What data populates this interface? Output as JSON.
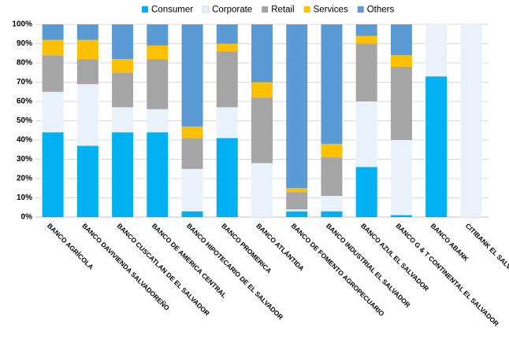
{
  "chart_data": {
    "type": "stacked-bar",
    "categories": [
      "BANCO AGRÍCOLA",
      "BANCO DAVIVIENDA SALVADOREÑO",
      "BANCO CUSCATLAN DE EL SALVADOR",
      "BANCO DE AMERICA CENTRAL",
      "BANCO HIPOTECARIO DE EL SALVADOR",
      "BANCO PROMERICA",
      "BANCO ATLÁNTIDA",
      "BANCO DE FOMENTO AGROPECUARIO",
      "BANCO INDUSTRIAL EL SALVADOR",
      "BANCO AZUL EL SALVADOR",
      "BANCO G & T CONTINENTAL EL SALVADOR",
      "BANCO ABANK",
      "CITIBANK EL SALVADOR"
    ],
    "series": [
      {
        "name": "Consumer",
        "color": "#00b0f0",
        "values": [
          44,
          37,
          44,
          44,
          3,
          41,
          0,
          3,
          3,
          26,
          1,
          73,
          0
        ]
      },
      {
        "name": "Corporate",
        "color": "#e9f1fb",
        "values": [
          21,
          32,
          13,
          12,
          22,
          16,
          28,
          1,
          8,
          34,
          39,
          27,
          100
        ]
      },
      {
        "name": "Retail",
        "color": "#a5a5a5",
        "values": [
          19,
          13,
          18,
          26,
          16,
          29,
          34,
          9,
          20,
          30,
          38,
          0,
          0
        ]
      },
      {
        "name": "Services",
        "color": "#ffc000",
        "values": [
          8,
          10,
          7,
          7,
          6,
          4,
          8,
          2,
          7,
          4,
          6,
          0,
          0
        ]
      },
      {
        "name": "Others",
        "color": "#5b9bd5",
        "values": [
          8,
          8,
          18,
          11,
          53,
          10,
          30,
          85,
          62,
          6,
          16,
          0,
          0
        ]
      }
    ],
    "ylim": [
      0,
      100
    ],
    "yticks": [
      {
        "value": 0,
        "label": "0%"
      },
      {
        "value": 10,
        "label": "10%"
      },
      {
        "value": 20,
        "label": "20%"
      },
      {
        "value": 30,
        "label": "30%"
      },
      {
        "value": 40,
        "label": "40%"
      },
      {
        "value": 50,
        "label": "50%"
      },
      {
        "value": 60,
        "label": "60%"
      },
      {
        "value": 70,
        "label": "70%"
      },
      {
        "value": 80,
        "label": "80%"
      },
      {
        "value": 90,
        "label": "90%"
      },
      {
        "value": 100,
        "label": "100%"
      }
    ],
    "grid": true,
    "legend": "top"
  }
}
